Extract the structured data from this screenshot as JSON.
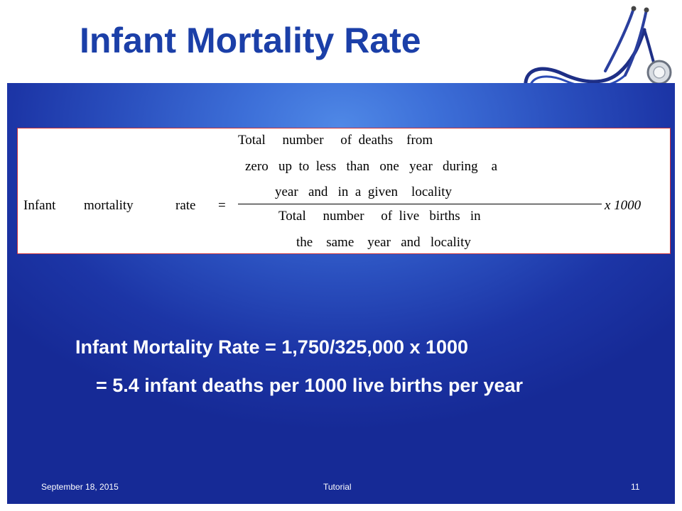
{
  "slide": {
    "title": "Infant Mortality Rate",
    "formula": {
      "lhs_words": [
        "Infant",
        "mortality",
        "rate"
      ],
      "equals": "=",
      "numerator_lines": [
        "Total     number     of  deaths    from",
        "zero   up  to  less   than   one   year   during    a",
        "year   and   in  a  given    locality"
      ],
      "denominator_lines": [
        "Total     number     of  live   births   in",
        "the    same    year   and   locality"
      ],
      "multiplier": "x 1000"
    },
    "result_line1": "Infant Mortality Rate = 1,750/325,000 x 1000",
    "result_line2": "= 5.4 infant deaths per 1000 live births per year",
    "footer": {
      "date": "September 18, 2015",
      "center": "Tutorial",
      "page_number": "11"
    }
  },
  "colors": {
    "title": "#1b3fa8",
    "panel_center": "#4f88e6",
    "panel_edge": "#162a96",
    "formula_border": "#c8323c"
  },
  "icons": {
    "decoration": "stethoscope-icon"
  }
}
